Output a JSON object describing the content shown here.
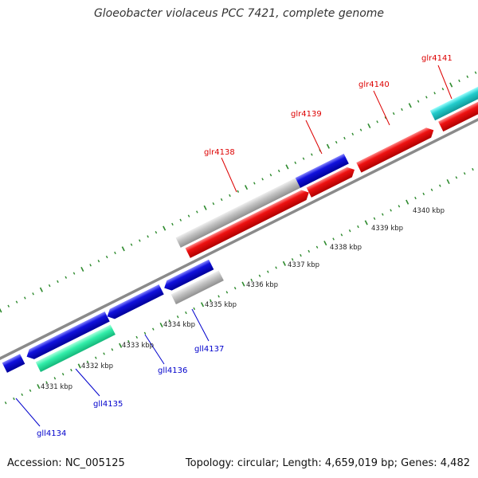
{
  "title": "Gloeobacter violaceus PCC 7421, complete genome",
  "footer": {
    "accession": "Accession: NC_005125",
    "summary": "Topology: circular; Length: 4,659,019 bp; Genes: 4,482"
  },
  "colors": {
    "background": "#ffffff",
    "backbone": "#888888",
    "tick": "#2d8a2d",
    "forward_label": "#dd0000",
    "reverse_label": "#0000cc",
    "gene_red": "#ee1111",
    "gene_blue": "#1111dd",
    "gene_gray": "#bbbbbb",
    "gene_cyan": "#22cccc",
    "gene_green": "#33eeaa"
  },
  "ruler_labels": [
    "4331 kbp",
    "4332 kbp",
    "4333 kbp",
    "4334 kbp",
    "4335 kbp",
    "4336 kbp",
    "4337 kbp",
    "4338 kbp",
    "4339 kbp",
    "4340 kbp"
  ],
  "forward_genes": [
    {
      "label": "glr4138",
      "color": "gene_red"
    },
    {
      "label": "glr4139",
      "color": "gene_red"
    },
    {
      "label": "glr4140",
      "color": "gene_red"
    },
    {
      "label": "glr4141",
      "color": "gene_red"
    }
  ],
  "reverse_genes": [
    {
      "label": "gll4134",
      "color": "gene_blue"
    },
    {
      "label": "gll4135",
      "color": "gene_green"
    },
    {
      "label": "gll4136",
      "color": "gene_blue"
    },
    {
      "label": "gll4137",
      "color": "gene_blue"
    }
  ]
}
